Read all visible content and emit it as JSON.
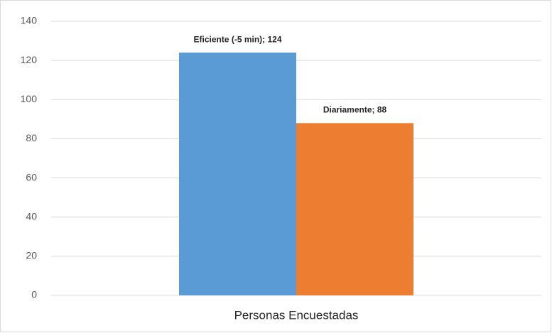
{
  "chart_data": {
    "type": "bar",
    "categories": [
      "Personas Encuestadas"
    ],
    "series": [
      {
        "name": "Eficiente (-5 min)",
        "color": "#5b9bd5",
        "values": [
          124
        ],
        "value_labels": [
          "Eficiente (-5 min); 124"
        ]
      },
      {
        "name": "Diariamente",
        "color": "#ed7d31",
        "values": [
          88
        ],
        "value_labels": [
          "Diariamente; 88"
        ]
      }
    ],
    "ylim": [
      0,
      140
    ],
    "yticks": [
      0,
      20,
      40,
      60,
      80,
      100,
      120,
      140
    ],
    "grid": true
  }
}
